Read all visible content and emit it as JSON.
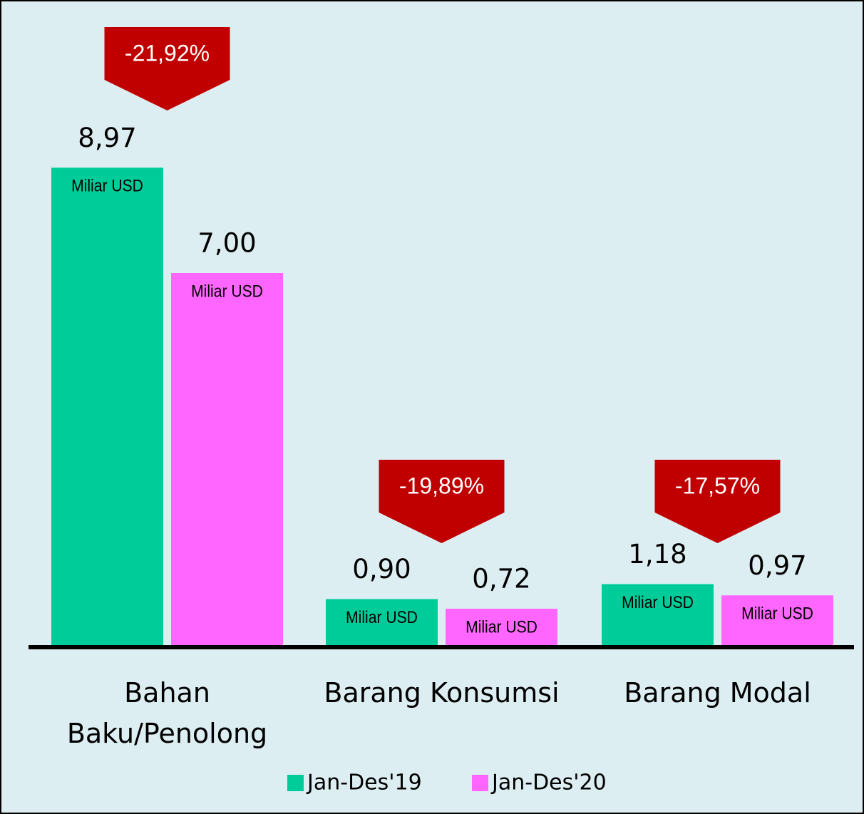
{
  "chart_data": {
    "type": "bar",
    "categories": [
      "Bahan Baku/Penolong",
      "Barang Konsumsi",
      "Barang Modal"
    ],
    "series": [
      {
        "name": "Jan-Des'19",
        "color": "#00cc99",
        "values": [
          8.97,
          0.9,
          1.18
        ],
        "value_labels": [
          "8,97",
          "0,90",
          "1,18"
        ]
      },
      {
        "name": "Jan-Des'20",
        "color": "#ff66ff",
        "values": [
          7.0,
          0.72,
          0.97
        ],
        "value_labels": [
          "7,00",
          "0,72",
          "0,97"
        ]
      }
    ],
    "bar_unit": "Miliar USD",
    "annotations": [
      "-21,92%",
      "-19,89%",
      "-17,57%"
    ],
    "annotation_color": "#c00000"
  }
}
